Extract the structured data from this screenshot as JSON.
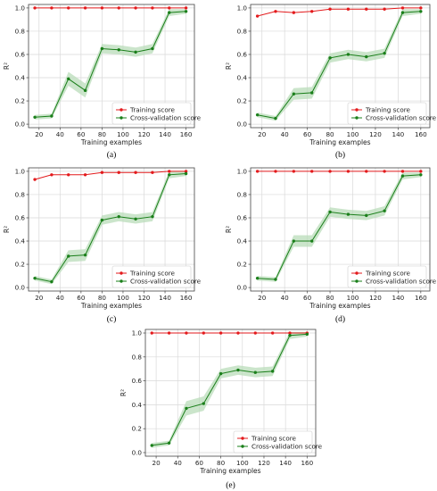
{
  "figure": {
    "colors": {
      "training": "#e31a1c",
      "validation": "#1a7f1a",
      "band": "#b9dcb9",
      "grid": "#d9d9d9",
      "frame": "#444444"
    }
  },
  "chart_data": [
    {
      "type": "line",
      "panel_label": "(a)",
      "xlabel": "Training examples",
      "ylabel": "R²",
      "xlim": [
        10,
        168
      ],
      "ylim": [
        -0.03,
        1.03
      ],
      "xticks": [
        "20",
        "40",
        "60",
        "80",
        "100",
        "120",
        "140",
        "160"
      ],
      "yticks": [
        "0.0",
        "0.2",
        "0.4",
        "0.6",
        "0.8",
        "1.0"
      ],
      "grid": true,
      "legend_position": "lower-right",
      "x": [
        16,
        32,
        48,
        64,
        80,
        96,
        112,
        128,
        144,
        160
      ],
      "series": [
        {
          "name": "Training score",
          "values": [
            1.0,
            1.0,
            1.0,
            1.0,
            1.0,
            1.0,
            1.0,
            1.0,
            1.0,
            1.0
          ]
        },
        {
          "name": "Cross-validation score",
          "values": [
            0.06,
            0.07,
            0.39,
            0.29,
            0.65,
            0.64,
            0.62,
            0.65,
            0.96,
            0.97
          ],
          "band_halfwidth": [
            0.02,
            0.02,
            0.06,
            0.06,
            0.04,
            0.04,
            0.04,
            0.04,
            0.03,
            0.02
          ]
        }
      ]
    },
    {
      "type": "line",
      "panel_label": "(b)",
      "xlabel": "Training examples",
      "ylabel": "R²",
      "xlim": [
        10,
        168
      ],
      "ylim": [
        -0.03,
        1.03
      ],
      "xticks": [
        "20",
        "40",
        "60",
        "80",
        "100",
        "120",
        "140",
        "160"
      ],
      "yticks": [
        "0.0",
        "0.2",
        "0.4",
        "0.6",
        "0.8",
        "1.0"
      ],
      "grid": true,
      "legend_position": "lower-right",
      "x": [
        16,
        32,
        48,
        64,
        80,
        96,
        112,
        128,
        144,
        160
      ],
      "series": [
        {
          "name": "Training score",
          "values": [
            0.93,
            0.97,
            0.96,
            0.97,
            0.99,
            0.99,
            0.99,
            0.99,
            1.0,
            1.0
          ]
        },
        {
          "name": "Cross-validation score",
          "values": [
            0.08,
            0.05,
            0.26,
            0.27,
            0.57,
            0.6,
            0.58,
            0.61,
            0.96,
            0.97
          ],
          "band_halfwidth": [
            0.02,
            0.02,
            0.05,
            0.05,
            0.04,
            0.04,
            0.04,
            0.04,
            0.03,
            0.02
          ]
        }
      ]
    },
    {
      "type": "line",
      "panel_label": "(c)",
      "xlabel": "Training examples",
      "ylabel": "R²",
      "xlim": [
        10,
        168
      ],
      "ylim": [
        -0.03,
        1.03
      ],
      "xticks": [
        "20",
        "40",
        "60",
        "80",
        "100",
        "120",
        "140",
        "160"
      ],
      "yticks": [
        "0.0",
        "0.2",
        "0.4",
        "0.6",
        "0.8",
        "1.0"
      ],
      "grid": true,
      "legend_position": "lower-right",
      "x": [
        16,
        32,
        48,
        64,
        80,
        96,
        112,
        128,
        144,
        160
      ],
      "series": [
        {
          "name": "Training score",
          "values": [
            0.93,
            0.97,
            0.97,
            0.97,
            0.99,
            0.99,
            0.99,
            0.99,
            1.0,
            1.0
          ]
        },
        {
          "name": "Cross-validation score",
          "values": [
            0.08,
            0.05,
            0.27,
            0.28,
            0.58,
            0.61,
            0.59,
            0.61,
            0.97,
            0.98
          ],
          "band_halfwidth": [
            0.02,
            0.02,
            0.05,
            0.05,
            0.04,
            0.04,
            0.04,
            0.04,
            0.03,
            0.02
          ]
        }
      ]
    },
    {
      "type": "line",
      "panel_label": "(d)",
      "xlabel": "Training examples",
      "ylabel": "R²",
      "xlim": [
        10,
        168
      ],
      "ylim": [
        -0.03,
        1.03
      ],
      "xticks": [
        "20",
        "40",
        "60",
        "80",
        "100",
        "120",
        "140",
        "160"
      ],
      "yticks": [
        "0.0",
        "0.2",
        "0.4",
        "0.6",
        "0.8",
        "1.0"
      ],
      "grid": true,
      "legend_position": "lower-right",
      "x": [
        16,
        32,
        48,
        64,
        80,
        96,
        112,
        128,
        144,
        160
      ],
      "series": [
        {
          "name": "Training score",
          "values": [
            1.0,
            1.0,
            1.0,
            1.0,
            1.0,
            1.0,
            1.0,
            1.0,
            1.0,
            1.0
          ]
        },
        {
          "name": "Cross-validation score",
          "values": [
            0.08,
            0.07,
            0.4,
            0.4,
            0.65,
            0.63,
            0.62,
            0.66,
            0.96,
            0.97
          ],
          "band_halfwidth": [
            0.02,
            0.02,
            0.05,
            0.05,
            0.04,
            0.04,
            0.04,
            0.04,
            0.03,
            0.02
          ]
        }
      ]
    },
    {
      "type": "line",
      "panel_label": "(e)",
      "xlabel": "Training examples",
      "ylabel": "R²",
      "xlim": [
        10,
        168
      ],
      "ylim": [
        -0.03,
        1.03
      ],
      "xticks": [
        "20",
        "40",
        "60",
        "80",
        "100",
        "120",
        "140",
        "160"
      ],
      "yticks": [
        "0.0",
        "0.2",
        "0.4",
        "0.6",
        "0.8",
        "1.0"
      ],
      "grid": true,
      "legend_position": "lower-right",
      "x": [
        16,
        32,
        48,
        64,
        80,
        96,
        112,
        128,
        144,
        160
      ],
      "series": [
        {
          "name": "Training score",
          "values": [
            1.0,
            1.0,
            1.0,
            1.0,
            1.0,
            1.0,
            1.0,
            1.0,
            1.0,
            1.0
          ]
        },
        {
          "name": "Cross-validation score",
          "values": [
            0.06,
            0.08,
            0.37,
            0.41,
            0.66,
            0.69,
            0.67,
            0.68,
            0.98,
            0.99
          ],
          "band_halfwidth": [
            0.02,
            0.02,
            0.06,
            0.06,
            0.04,
            0.04,
            0.04,
            0.04,
            0.03,
            0.02
          ]
        }
      ]
    }
  ]
}
